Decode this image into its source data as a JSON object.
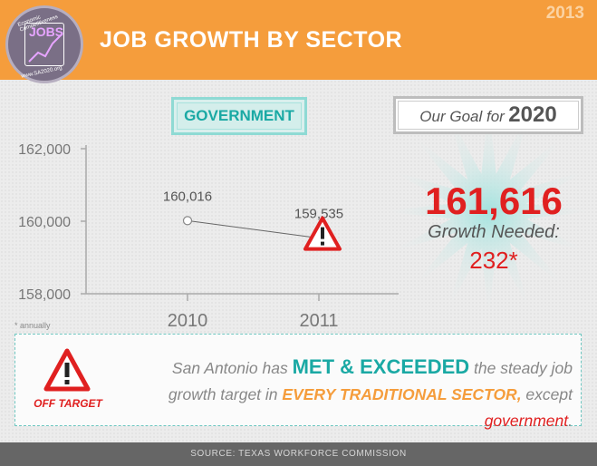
{
  "header": {
    "title": "JOB GROWTH BY SECTOR",
    "year": "2013",
    "logo": {
      "word": "JOBS",
      "arc_top": "Economic Competitiveness",
      "arc_bottom": "www.SA2020.org"
    }
  },
  "sector_label": "GOVERNMENT",
  "chart_data": {
    "type": "line",
    "categories": [
      "2010",
      "2011"
    ],
    "values": [
      160016,
      159535
    ],
    "value_labels": [
      "160,016",
      "159,535"
    ],
    "y_ticks": [
      "162,000",
      "160,000",
      "158,000"
    ],
    "ylim": [
      158000,
      162000
    ],
    "title": "",
    "xlabel": "",
    "ylabel": "",
    "warning_marker_at": "2011"
  },
  "footnote": "* annually",
  "goal": {
    "prefix": "Our Goal for",
    "year": "2020",
    "value": "161,616",
    "growth_label": "Growth Needed:",
    "growth_value": "232*"
  },
  "message": {
    "off_target": "OFF TARGET",
    "part1": "San Antonio has ",
    "highlight1": "MET & EXCEEDED",
    "part2": " the steady job growth target in ",
    "highlight2": "EVERY TRADITIONAL SECTOR,",
    "part3": " except ",
    "highlight3": "government",
    "part4": "."
  },
  "footer": {
    "source": "SOURCE: TEXAS WORKFORCE COMMISSION"
  },
  "colors": {
    "orange": "#f59d3c",
    "teal": "#1aa9a4",
    "red": "#e02020",
    "footer": "#666666"
  }
}
